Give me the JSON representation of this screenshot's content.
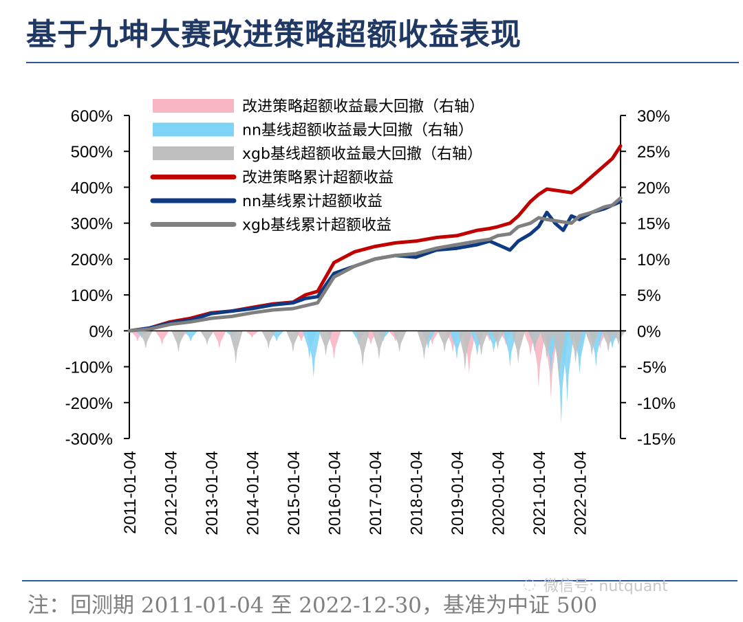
{
  "title": "基于九坤大赛改进策略超额收益表现",
  "note": "注：回测期 2011-01-04 至 2022-12-30，基准为中证 500",
  "watermark": "微信号: nutquant",
  "chart_data": {
    "type": "line",
    "y_left": {
      "ticks": [
        "600%",
        "500%",
        "400%",
        "300%",
        "200%",
        "100%",
        "0%",
        "-100%",
        "-200%",
        "-300%"
      ],
      "range": [
        -300,
        600
      ]
    },
    "y_right": {
      "ticks": [
        "30%",
        "25%",
        "20%",
        "15%",
        "10%",
        "5%",
        "0%",
        "-5%",
        "-10%",
        "-15%"
      ],
      "range": [
        -15,
        30
      ]
    },
    "x_ticks": [
      "2011-01-04",
      "2012-01-04",
      "2013-01-04",
      "2014-01-04",
      "2015-01-04",
      "2016-01-04",
      "2017-01-04",
      "2018-01-04",
      "2019-01-04",
      "2020-01-04",
      "2021-01-04",
      "2022-01-04"
    ],
    "x_range": [
      2011.0,
      2023.0
    ],
    "legend": [
      {
        "label": "改进策略超额收益最大回撤（右轴）",
        "color": "#f7b6c2",
        "kind": "area"
      },
      {
        "label": "nn基线超额收益最大回撤（右轴）",
        "color": "#7fd4f5",
        "kind": "area"
      },
      {
        "label": "xgb基线超额收益最大回撤（右轴）",
        "color": "#bfbfbf",
        "kind": "area"
      },
      {
        "label": "改进策略累计超额收益",
        "color": "#c00000",
        "kind": "line"
      },
      {
        "label": "nn基线累计超额收益",
        "color": "#0d3a82",
        "kind": "line"
      },
      {
        "label": "xgb基线累计超额收益",
        "color": "#7f7f7f",
        "kind": "line"
      }
    ],
    "series": [
      {
        "name": "改进策略累计超额收益",
        "axis": "left",
        "x": [
          2011.0,
          2011.5,
          2012.0,
          2012.5,
          2013.0,
          2013.5,
          2014.0,
          2014.5,
          2015.0,
          2015.3,
          2015.6,
          2016.0,
          2016.5,
          2017.0,
          2017.5,
          2018.0,
          2018.5,
          2019.0,
          2019.5,
          2019.8,
          2020.0,
          2020.3,
          2020.5,
          2020.8,
          2021.0,
          2021.2,
          2021.5,
          2021.8,
          2022.0,
          2022.3,
          2022.6,
          2022.8,
          2023.0
        ],
        "values": [
          0,
          8,
          25,
          35,
          50,
          55,
          65,
          75,
          80,
          100,
          110,
          190,
          220,
          235,
          245,
          250,
          260,
          265,
          280,
          285,
          290,
          300,
          320,
          360,
          380,
          395,
          390,
          385,
          400,
          430,
          460,
          480,
          515
        ]
      },
      {
        "name": "nn基线累计超额收益",
        "axis": "left",
        "x": [
          2011.0,
          2011.5,
          2012.0,
          2012.5,
          2013.0,
          2013.5,
          2014.0,
          2014.5,
          2015.0,
          2015.3,
          2015.6,
          2016.0,
          2016.5,
          2017.0,
          2017.5,
          2018.0,
          2018.5,
          2019.0,
          2019.5,
          2019.8,
          2020.0,
          2020.3,
          2020.5,
          2020.8,
          2021.0,
          2021.2,
          2021.4,
          2021.6,
          2021.8,
          2022.0,
          2022.3,
          2022.6,
          2022.8,
          2023.0
        ],
        "values": [
          0,
          8,
          22,
          30,
          48,
          55,
          62,
          72,
          78,
          90,
          95,
          160,
          180,
          200,
          210,
          205,
          225,
          230,
          240,
          250,
          240,
          225,
          250,
          270,
          290,
          330,
          300,
          280,
          320,
          310,
          330,
          340,
          350,
          360
        ]
      },
      {
        "name": "xgb基线累计超额收益",
        "axis": "left",
        "x": [
          2011.0,
          2011.5,
          2012.0,
          2012.5,
          2013.0,
          2013.5,
          2014.0,
          2014.5,
          2015.0,
          2015.3,
          2015.6,
          2016.0,
          2016.5,
          2017.0,
          2017.5,
          2018.0,
          2018.5,
          2019.0,
          2019.5,
          2019.8,
          2020.0,
          2020.3,
          2020.5,
          2020.8,
          2021.0,
          2021.2,
          2021.5,
          2021.8,
          2022.0,
          2022.3,
          2022.6,
          2022.8,
          2023.0
        ],
        "values": [
          0,
          5,
          18,
          25,
          35,
          40,
          50,
          58,
          62,
          70,
          78,
          150,
          180,
          200,
          210,
          215,
          230,
          240,
          250,
          255,
          265,
          270,
          290,
          300,
          315,
          310,
          305,
          300,
          320,
          330,
          345,
          350,
          370
        ]
      }
    ],
    "drawdowns": [
      {
        "name": "改进策略超额收益最大回撤（右轴）",
        "axis": "right",
        "color": "#f7b6c2",
        "x": [
          2011.2,
          2011.8,
          2012.3,
          2013.2,
          2014.0,
          2015.2,
          2016.0,
          2016.9,
          2017.5,
          2018.4,
          2018.9,
          2019.3,
          2019.8,
          2020.2,
          2020.8,
          2021.0,
          2021.3,
          2021.6,
          2022.0,
          2022.5,
          2022.8
        ],
        "values": [
          -1.5,
          -2.0,
          -1.0,
          -2.5,
          -1.0,
          -1.5,
          -4.0,
          -2.0,
          -1.5,
          -2.0,
          -3.0,
          -6.0,
          -1.5,
          -2.0,
          -3.5,
          -8.0,
          -9.5,
          -6.0,
          -4.0,
          -2.5,
          -2.0
        ]
      },
      {
        "name": "nn基线超额收益最大回撤（右轴）",
        "axis": "right",
        "color": "#7fd4f5",
        "x": [
          2011.3,
          2012.5,
          2013.5,
          2014.6,
          2015.4,
          2015.5,
          2016.6,
          2017.2,
          2018.3,
          2019.0,
          2019.5,
          2019.9,
          2020.3,
          2020.9,
          2021.3,
          2021.55,
          2021.7,
          2022.0,
          2022.4,
          2022.8
        ],
        "values": [
          -1.0,
          -1.5,
          -1.0,
          -1.5,
          -4.0,
          -6.5,
          -2.0,
          -1.5,
          -2.5,
          -4.0,
          -3.5,
          -3.0,
          -5.0,
          -2.0,
          -6.0,
          -13.0,
          -10.0,
          -6.0,
          -5.0,
          -2.5
        ]
      },
      {
        "name": "xgb基线超额收益最大回撤（右轴）",
        "axis": "right",
        "color": "#bfbfbf",
        "x": [
          2011.4,
          2012.2,
          2012.9,
          2013.6,
          2014.4,
          2015.0,
          2015.8,
          2016.7,
          2017.1,
          2017.6,
          2018.2,
          2018.7,
          2019.2,
          2019.6,
          2020.0,
          2020.5,
          2020.9,
          2021.2,
          2021.5,
          2021.9,
          2022.3,
          2022.7,
          2022.95
        ],
        "values": [
          -2.5,
          -3.0,
          -2.0,
          -4.5,
          -2.5,
          -3.0,
          -3.5,
          -5.0,
          -4.0,
          -3.0,
          -4.0,
          -3.0,
          -5.5,
          -3.5,
          -2.5,
          -4.5,
          -3.0,
          -4.0,
          -7.0,
          -4.5,
          -3.5,
          -3.0,
          -2.0
        ]
      }
    ]
  }
}
